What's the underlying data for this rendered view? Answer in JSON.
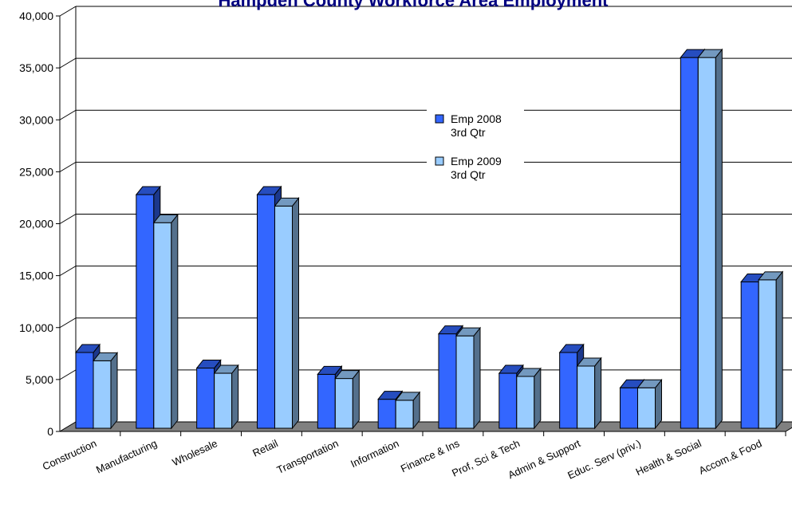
{
  "chart_data": {
    "type": "bar",
    "title": "Hampden County Workforce Area Employment",
    "categories": [
      "Construction",
      "Manufacturing",
      "Wholesale",
      "Retail",
      "Transportation",
      "Information",
      "Finance & Ins",
      "Prof, Sci & Tech",
      "Admin & Support",
      "Educ. Serv (priv.)",
      "Health & Social",
      "Accom.& Food"
    ],
    "series": [
      {
        "name": "Emp 2008 3rd Qtr",
        "name_lines": [
          "Emp 2008",
          "3rd Qtr"
        ],
        "color": "#3366ff",
        "values": [
          7600,
          22800,
          6100,
          22800,
          5500,
          3100,
          9400,
          5600,
          7600,
          4200,
          36000,
          14400
        ]
      },
      {
        "name": "Emp 2009 3rd Qtr",
        "name_lines": [
          "Emp 2009",
          "3rd Qtr"
        ],
        "color": "#99ccff",
        "values": [
          6800,
          20100,
          5600,
          21700,
          5100,
          3000,
          9200,
          5300,
          6300,
          4200,
          36000,
          14600
        ]
      }
    ],
    "ylim": [
      0,
      40000
    ],
    "yticks": [
      0,
      5000,
      10000,
      15000,
      20000,
      25000,
      30000,
      35000,
      40000
    ],
    "ytick_labels": [
      "0",
      "5,000",
      "10,000",
      "15,000",
      "20,000",
      "25,000",
      "30,000",
      "35,000",
      "40,000"
    ],
    "xlabel": "",
    "ylabel": "",
    "grid": true,
    "legend_position": "center",
    "style": "3d-column"
  }
}
